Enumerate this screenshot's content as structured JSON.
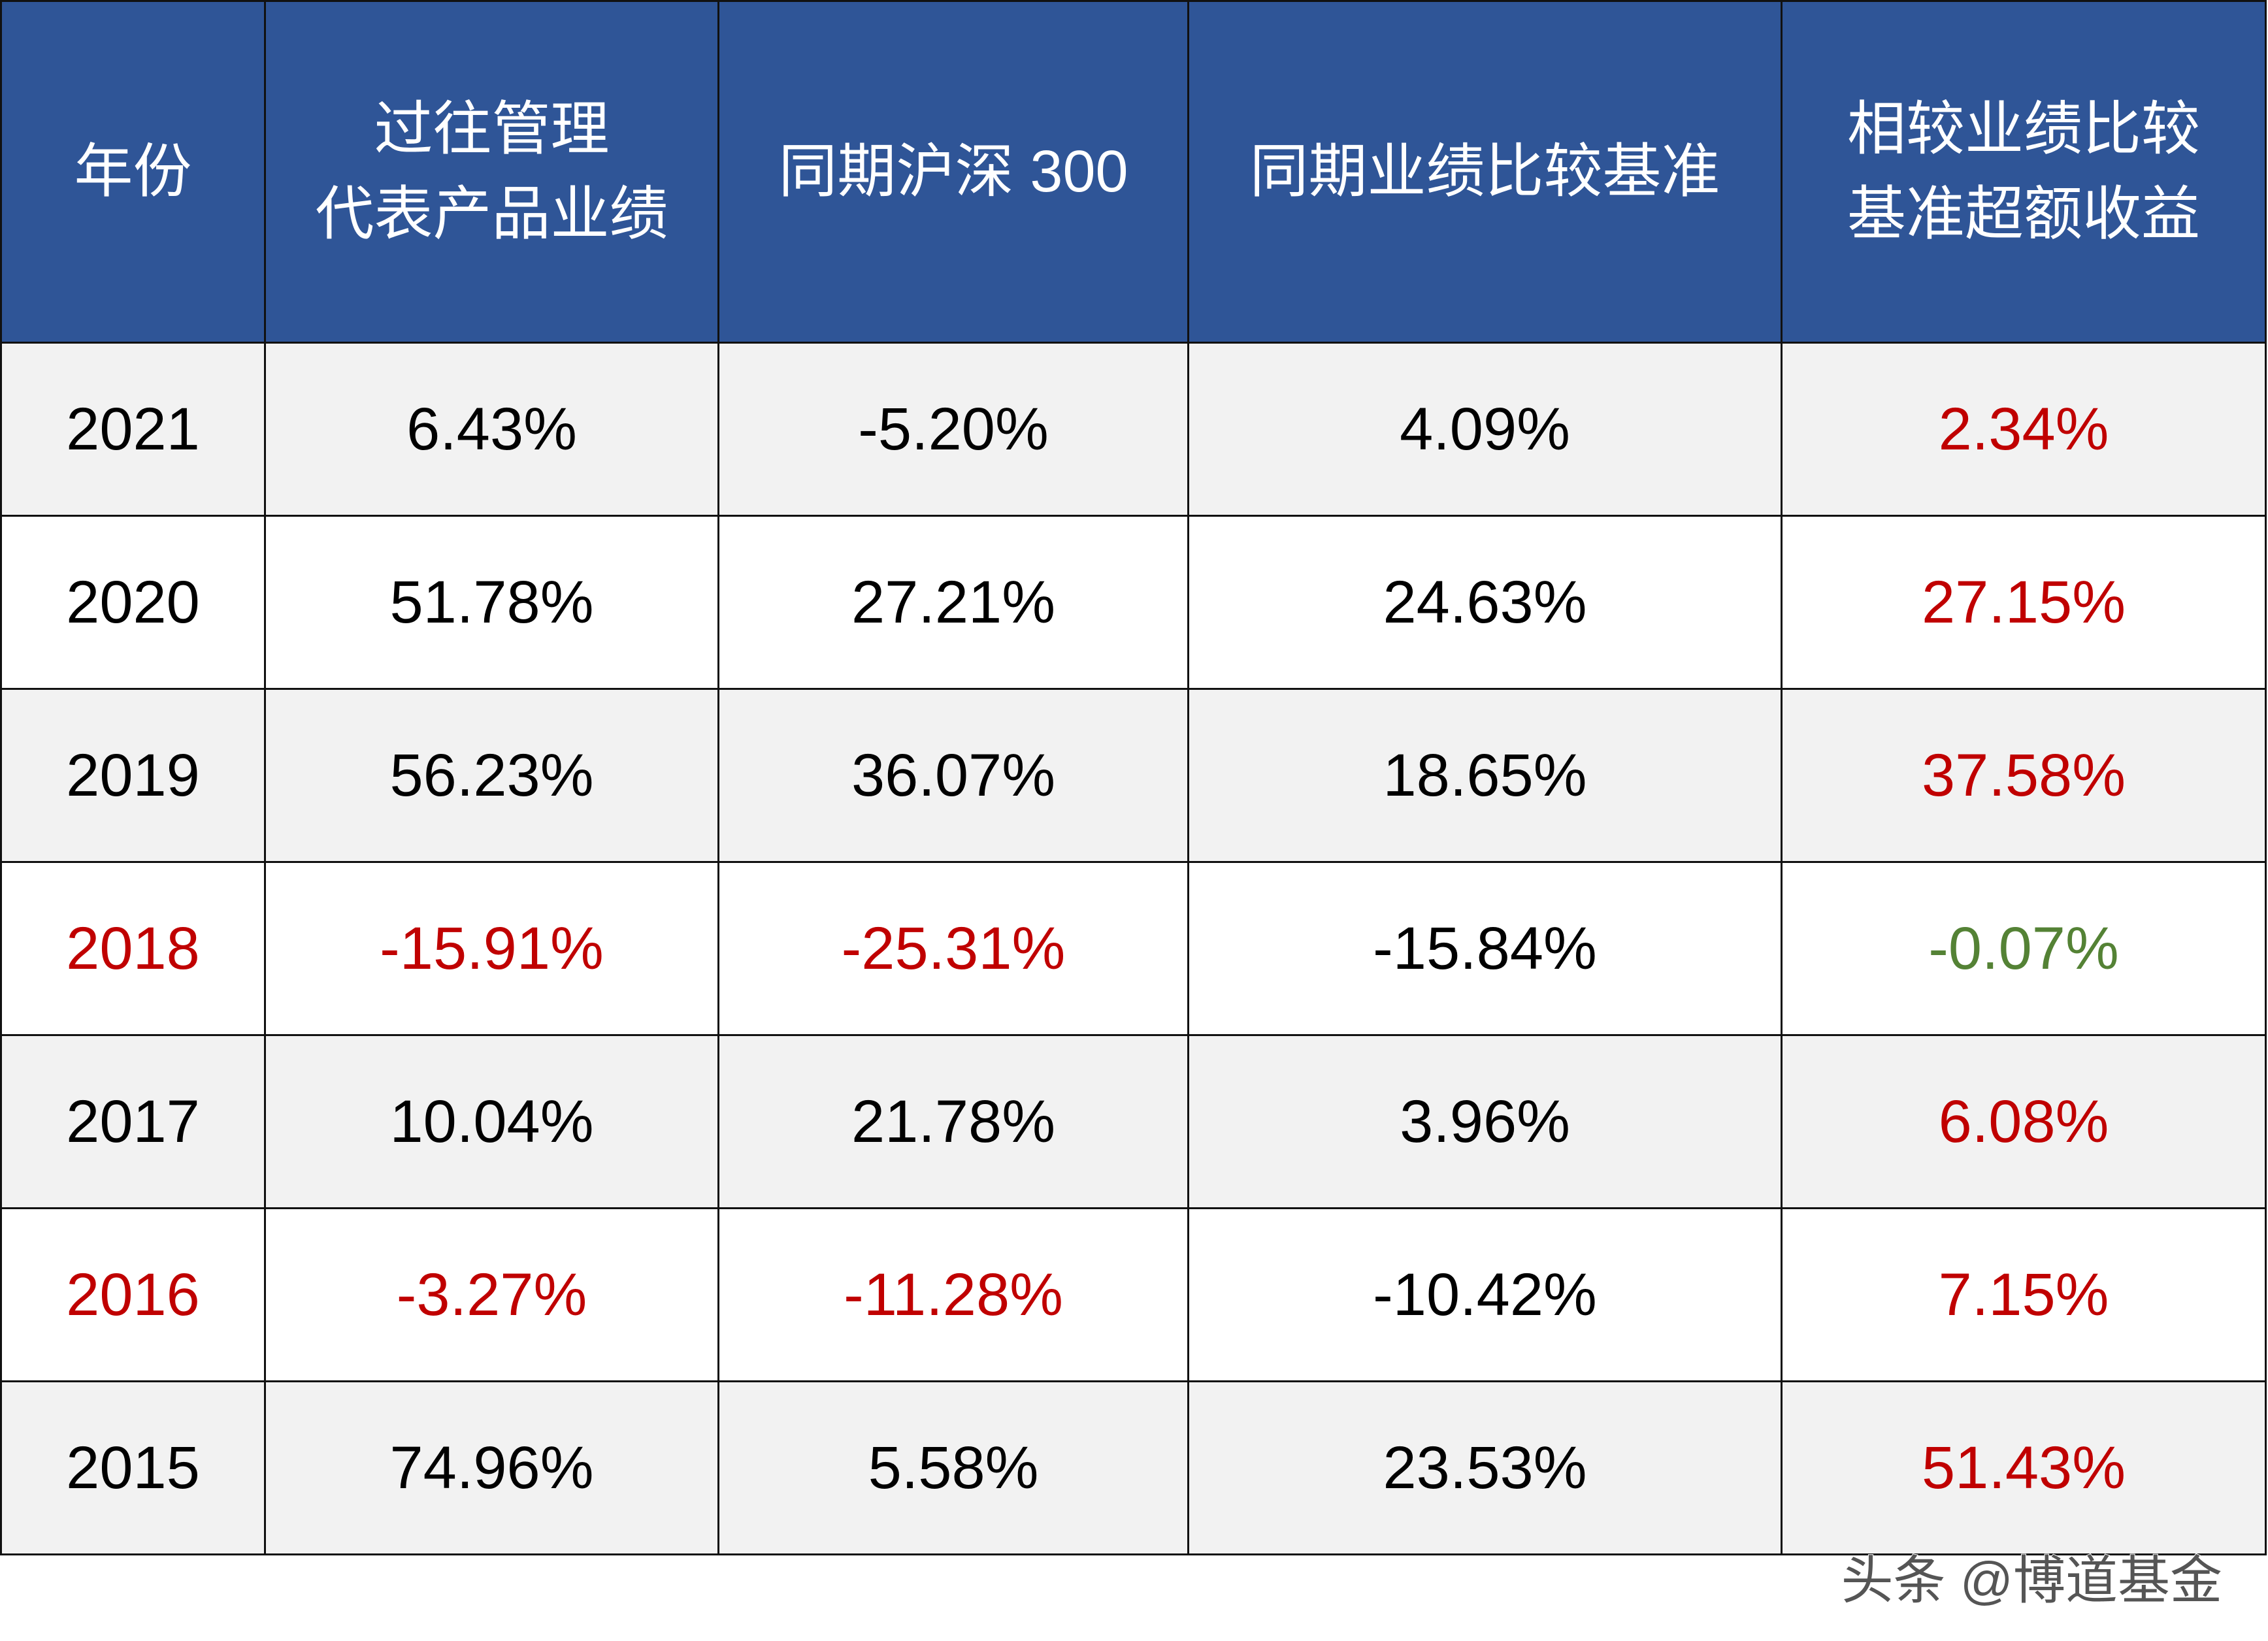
{
  "table": {
    "header": [
      [
        "年份"
      ],
      [
        "过往管理",
        "代表产品业绩"
      ],
      [
        "同期沪深 300"
      ],
      [
        "同期业绩比较基准"
      ],
      [
        "相较业绩比较",
        "基准超额收益"
      ]
    ],
    "header_color": "#2f5597",
    "rows": [
      [
        {
          "text": "2021",
          "color": "#000000"
        },
        {
          "text": "6.43%",
          "color": "#000000"
        },
        {
          "text": "-5.20%",
          "color": "#000000"
        },
        {
          "text": "4.09%",
          "color": "#000000"
        },
        {
          "text": "2.34%",
          "color": "#c00000"
        }
      ],
      [
        {
          "text": "2020",
          "color": "#000000"
        },
        {
          "text": "51.78%",
          "color": "#000000"
        },
        {
          "text": "27.21%",
          "color": "#000000"
        },
        {
          "text": "24.63%",
          "color": "#000000"
        },
        {
          "text": "27.15%",
          "color": "#c00000"
        }
      ],
      [
        {
          "text": "2019",
          "color": "#000000"
        },
        {
          "text": "56.23%",
          "color": "#000000"
        },
        {
          "text": "36.07%",
          "color": "#000000"
        },
        {
          "text": "18.65%",
          "color": "#000000"
        },
        {
          "text": "37.58%",
          "color": "#c00000"
        }
      ],
      [
        {
          "text": "2018",
          "color": "#c00000"
        },
        {
          "text": "-15.91%",
          "color": "#c00000"
        },
        {
          "text": "-25.31%",
          "color": "#c00000"
        },
        {
          "text": "-15.84%",
          "color": "#000000"
        },
        {
          "text": "-0.07%",
          "color": "#548235"
        }
      ],
      [
        {
          "text": "2017",
          "color": "#000000"
        },
        {
          "text": "10.04%",
          "color": "#000000"
        },
        {
          "text": "21.78%",
          "color": "#000000"
        },
        {
          "text": "3.96%",
          "color": "#000000"
        },
        {
          "text": "6.08%",
          "color": "#c00000"
        }
      ],
      [
        {
          "text": "2016",
          "color": "#c00000"
        },
        {
          "text": "-3.27%",
          "color": "#c00000"
        },
        {
          "text": "-11.28%",
          "color": "#c00000"
        },
        {
          "text": "-10.42%",
          "color": "#000000"
        },
        {
          "text": "7.15%",
          "color": "#c00000"
        }
      ],
      [
        {
          "text": "2015",
          "color": "#000000"
        },
        {
          "text": "74.96%",
          "color": "#000000"
        },
        {
          "text": "5.58%",
          "color": "#000000"
        },
        {
          "text": "23.53%",
          "color": "#000000"
        },
        {
          "text": "51.43%",
          "color": "#c00000"
        }
      ]
    ]
  },
  "watermark": "头条 @博道基金"
}
